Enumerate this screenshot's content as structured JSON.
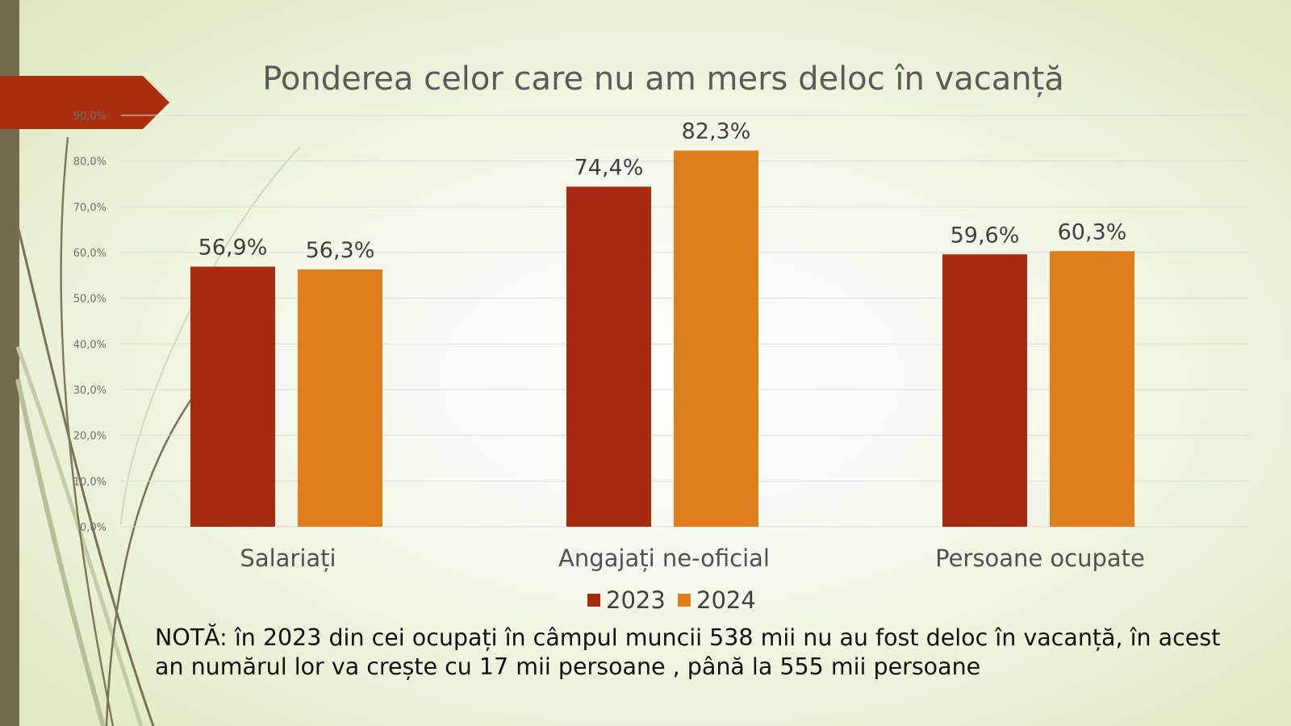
{
  "colors": {
    "series_2023": "#a52b10",
    "series_2024": "#de7e1c",
    "accent_bar": "#746b4f",
    "arrow_tag": "#a8300f",
    "grid": "#dcdcdc"
  },
  "chart_data": {
    "type": "bar",
    "title": "Ponderea celor care nu am mers deloc în vacanță",
    "categories": [
      "Salariați",
      "Angajați ne-oficial",
      "Persoane ocupate"
    ],
    "series": [
      {
        "name": "2023",
        "values": [
          56.9,
          74.4,
          59.6
        ],
        "labels": [
          "56,9%",
          "74,4%",
          "59,6%"
        ]
      },
      {
        "name": "2024",
        "values": [
          56.3,
          82.3,
          60.3
        ],
        "labels": [
          "56,3%",
          "82,3%",
          "60,3%"
        ]
      }
    ],
    "ylim": [
      0,
      90
    ],
    "yticks": [
      "0,0%",
      "10,0%",
      "20,0%",
      "30,0%",
      "40,0%",
      "50,0%",
      "60,0%",
      "70,0%",
      "80,0%",
      "90,0%"
    ],
    "grid": true,
    "legend": "bottom",
    "xlabel": "",
    "ylabel": ""
  },
  "note": "NOTĂ: în 2023 din cei ocupați în câmpul muncii 538 mii nu au fost deloc în vacanță, în acest an numărul lor va crește cu 17 mii persoane , până la 555 mii persoane"
}
